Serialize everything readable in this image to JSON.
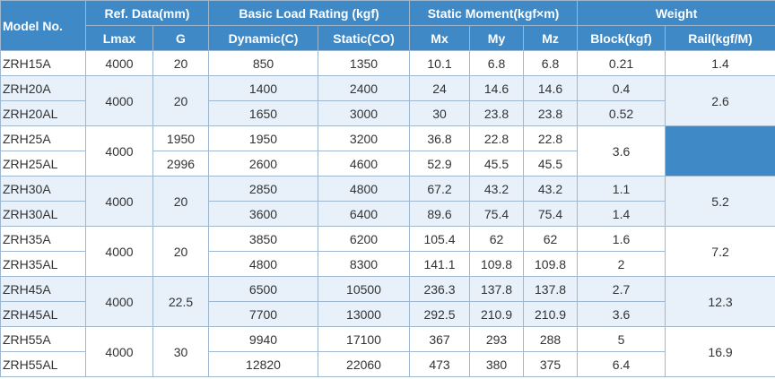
{
  "headers": {
    "model": "Model No.",
    "ref": "Ref. Data(mm)",
    "load": "Basic Load Rating (kgf)",
    "moment": "Static Moment(kgf×m)",
    "weight": "Weight",
    "lmax": "Lmax",
    "g": "G",
    "dynamic": "Dynamic(C)",
    "static": "Static(CO)",
    "mx": "Mx",
    "my": "My",
    "mz": "Mz",
    "block": "Block(kgf)",
    "rail": "Rail(kgf/M)"
  },
  "rows": {
    "zrh15a": {
      "model": "ZRH15A",
      "lmax": "4000",
      "g": "20",
      "dyn": "850",
      "stat": "1350",
      "mx": "10.1",
      "my": "6.8",
      "mz": "6.8",
      "block": "0.21",
      "rail": "1.4"
    },
    "zrh20": {
      "lmax": "4000",
      "g": "20",
      "rail": "2.6",
      "a": {
        "model": "ZRH20A",
        "dyn": "1400",
        "stat": "2400",
        "mx": "24",
        "my": "14.6",
        "mz": "14.6",
        "block": "0.4"
      },
      "al": {
        "model": "ZRH20AL",
        "dyn": "1650",
        "stat": "3000",
        "mx": "30",
        "my": "23.8",
        "mz": "23.8",
        "block": "0.52"
      }
    },
    "zrh25": {
      "lmax": "4000",
      "block": "3.6",
      "rail": "",
      "a": {
        "model": "ZRH25A",
        "g": "1950",
        "dyn": "1950",
        "stat": "3200",
        "mx": "36.8",
        "my": "22.8",
        "mz": "22.8"
      },
      "al": {
        "model": "ZRH25AL",
        "g": "2996",
        "dyn": "2600",
        "stat": "4600",
        "mx": "52.9",
        "my": "45.5",
        "mz": "45.5"
      }
    },
    "zrh30": {
      "lmax": "4000",
      "g": "20",
      "rail": "5.2",
      "a": {
        "model": "ZRH30A",
        "dyn": "2850",
        "stat": "4800",
        "mx": "67.2",
        "my": "43.2",
        "mz": "43.2",
        "block": "1.1"
      },
      "al": {
        "model": "ZRH30AL",
        "dyn": "3600",
        "stat": "6400",
        "mx": "89.6",
        "my": "75.4",
        "mz": "75.4",
        "block": "1.4"
      }
    },
    "zrh35": {
      "lmax": "4000",
      "g": "20",
      "rail": "7.2",
      "a": {
        "model": "ZRH35A",
        "dyn": "3850",
        "stat": "6200",
        "mx": "105.4",
        "my": "62",
        "mz": "62",
        "block": "1.6"
      },
      "al": {
        "model": "ZRH35AL",
        "dyn": "4800",
        "stat": "8300",
        "mx": "141.1",
        "my": "109.8",
        "mz": "109.8",
        "block": "2"
      }
    },
    "zrh45": {
      "lmax": "4000",
      "g": "22.5",
      "rail": "12.3",
      "a": {
        "model": "ZRH45A",
        "dyn": "6500",
        "stat": "10500",
        "mx": "236.3",
        "my": "137.8",
        "mz": "137.8",
        "block": "2.7"
      },
      "al": {
        "model": "ZRH45AL",
        "dyn": "7700",
        "stat": "13000",
        "mx": "292.5",
        "my": "210.9",
        "mz": "210.9",
        "block": "3.6"
      }
    },
    "zrh55": {
      "lmax": "4000",
      "g": "30",
      "rail": "16.9",
      "a": {
        "model": "ZRH55A",
        "dyn": "9940",
        "stat": "17100",
        "mx": "367",
        "my": "293",
        "mz": "288",
        "block": "5"
      },
      "al": {
        "model": "ZRH55AL",
        "dyn": "12820",
        "stat": "22060",
        "mx": "473",
        "my": "380",
        "mz": "375",
        "block": "6.4"
      }
    }
  }
}
